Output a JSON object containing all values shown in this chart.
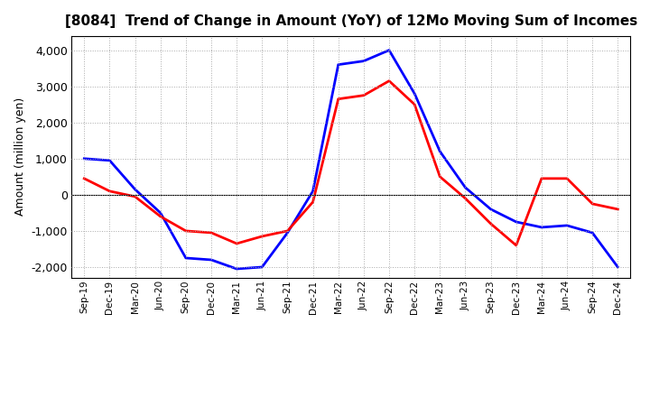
{
  "title": "[8084]  Trend of Change in Amount (YoY) of 12Mo Moving Sum of Incomes",
  "ylabel": "Amount (million yen)",
  "x_labels": [
    "Sep-19",
    "Dec-19",
    "Mar-20",
    "Jun-20",
    "Sep-20",
    "Dec-20",
    "Mar-21",
    "Jun-21",
    "Sep-21",
    "Dec-21",
    "Mar-22",
    "Jun-22",
    "Sep-22",
    "Dec-22",
    "Mar-23",
    "Jun-23",
    "Sep-23",
    "Dec-23",
    "Mar-24",
    "Jun-24",
    "Sep-24",
    "Dec-24"
  ],
  "ordinary_income": [
    1000,
    950,
    150,
    -500,
    -1750,
    -1800,
    -2050,
    -2000,
    -1050,
    100,
    3600,
    3700,
    4000,
    2800,
    1200,
    200,
    -400,
    -750,
    -900,
    -850,
    -1050,
    -2000
  ],
  "net_income": [
    450,
    100,
    -50,
    -600,
    -1000,
    -1050,
    -1350,
    -1150,
    -1000,
    -200,
    2650,
    2750,
    3150,
    2500,
    500,
    -100,
    -800,
    -1400,
    450,
    450,
    -250,
    -400
  ],
  "ordinary_color": "#0000FF",
  "net_color": "#FF0000",
  "ylim": [
    -2300,
    4400
  ],
  "yticks": [
    -2000,
    -1000,
    0,
    1000,
    2000,
    3000,
    4000
  ],
  "background_color": "#FFFFFF",
  "grid_color": "#AAAAAA"
}
